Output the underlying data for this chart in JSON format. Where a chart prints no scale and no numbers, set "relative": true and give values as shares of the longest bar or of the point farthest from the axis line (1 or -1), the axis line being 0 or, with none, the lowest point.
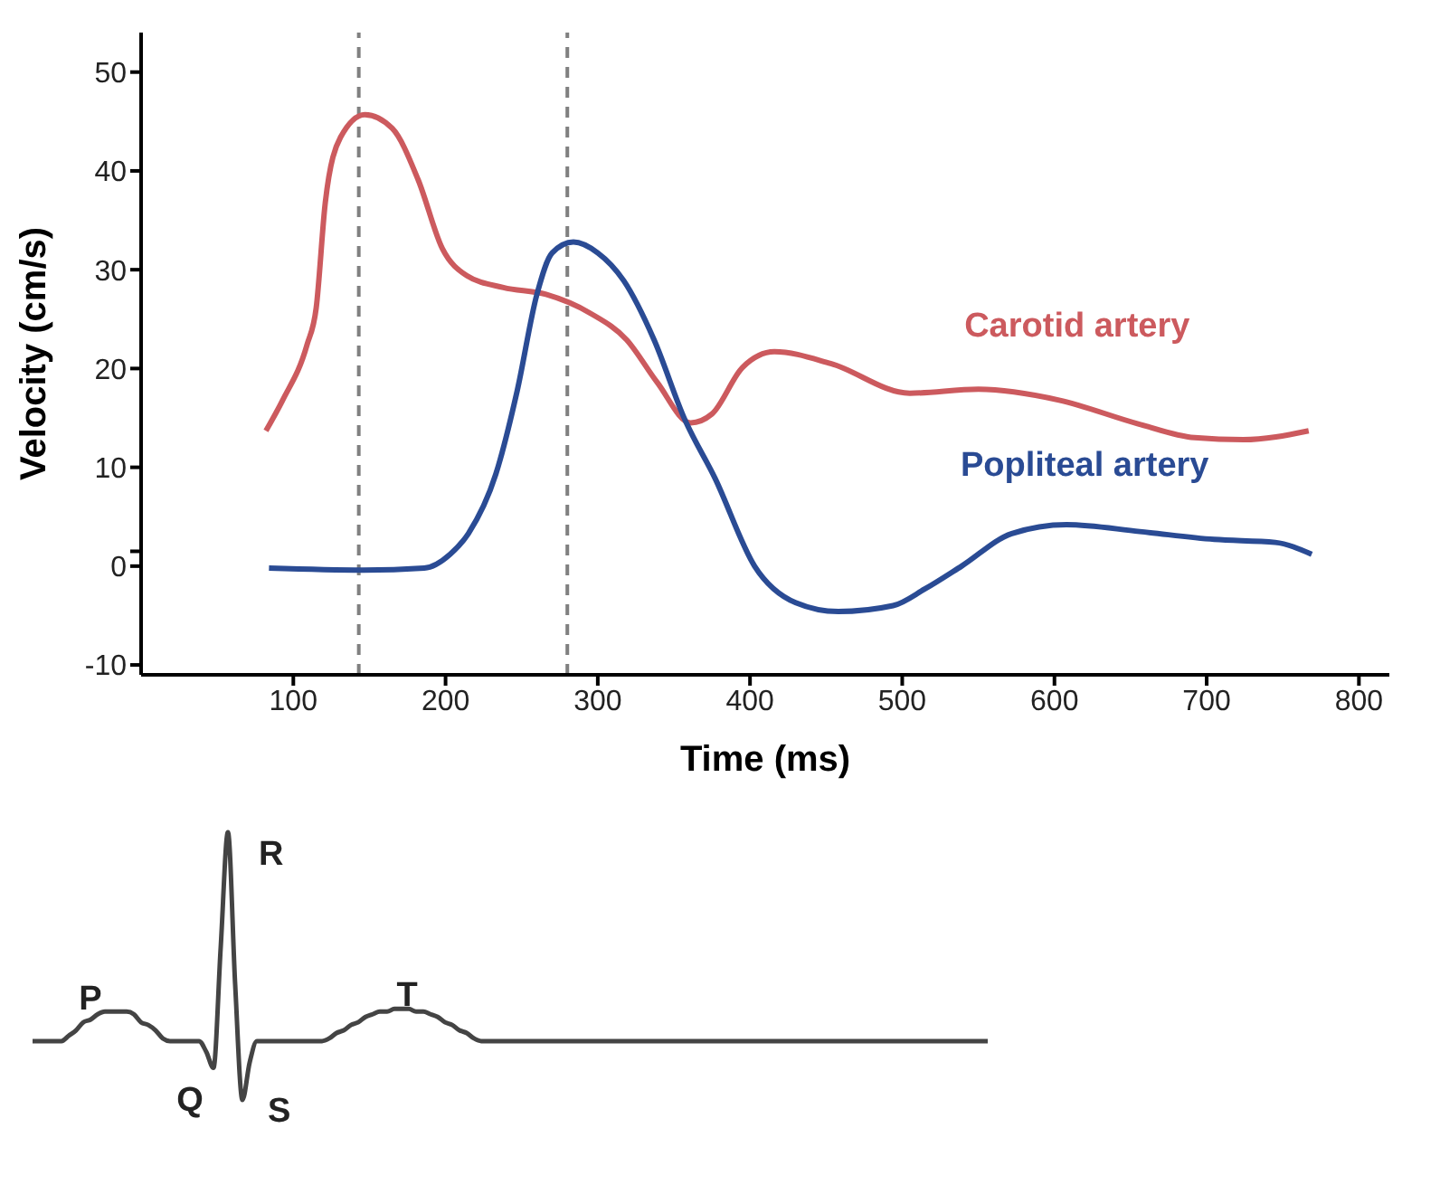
{
  "chart_data": [
    {
      "type": "line",
      "xlabel": "Time (ms)",
      "ylabel": "Velocity (cm/s)",
      "xlim": [
        0,
        820
      ],
      "xticks": [
        100,
        200,
        300,
        400,
        500,
        600,
        700,
        800
      ],
      "ylim": [
        -11,
        54
      ],
      "yticks": [
        -10,
        0,
        {
          "value": 1.5,
          "label": null
        },
        10,
        20,
        30,
        40,
        50
      ],
      "grid": false,
      "legend": false,
      "marker": "none",
      "series": [
        {
          "name": "Carotid artery",
          "color": "#cc5a5e",
          "x": [
            82,
            93,
            109,
            115,
            121,
            131,
            147,
            165,
            182,
            198,
            214,
            238,
            266,
            295,
            319,
            339,
            361,
            375,
            395,
            416,
            453,
            505,
            550,
            603,
            655,
            692,
            724,
            767
          ],
          "values": [
            13.7,
            16.8,
            22.4,
            26.1,
            36.8,
            43.4,
            45.7,
            44.3,
            39.1,
            32.1,
            29.4,
            28.2,
            27.5,
            25.6,
            22.9,
            18.6,
            14.5,
            15.4,
            20.1,
            21.7,
            20.5,
            17.5,
            17.9,
            16.8,
            14.4,
            13.0,
            12.8,
            13.7
          ]
        },
        {
          "name": "Popliteal artery",
          "color": "#2a4b94",
          "x": [
            84,
            146,
            186,
            203,
            215,
            233,
            247,
            260,
            270,
            284,
            300,
            317,
            337,
            357,
            377,
            403,
            430,
            458,
            494,
            515,
            539,
            572,
            608,
            656,
            705,
            745,
            769
          ],
          "values": [
            -0.2,
            -0.4,
            -0.2,
            1.2,
            3.3,
            9.3,
            17.7,
            27.5,
            31.7,
            32.8,
            31.7,
            28.9,
            22.9,
            14.9,
            8.9,
            0,
            -3.7,
            -4.6,
            -4.0,
            -2.3,
            0,
            3.3,
            4.2,
            3.5,
            2.7,
            2.4,
            1.2
          ]
        }
      ],
      "ref_lines": [
        {
          "axis": "x",
          "value": 143,
          "label": null,
          "color": "#808080",
          "line_style": "dashed"
        },
        {
          "axis": "x",
          "value": 280,
          "label": null,
          "color": "#808080",
          "line_style": "dashed"
        }
      ]
    },
    {
      "type": "line",
      "relative": true,
      "color": "#444444",
      "categories": [
        null,
        null,
        null,
        null,
        null,
        null,
        null,
        null,
        null,
        null,
        null,
        null,
        null,
        null,
        null,
        null,
        null,
        null,
        null,
        null,
        null,
        null,
        null,
        null,
        null,
        null,
        null,
        null,
        null,
        null,
        null,
        null,
        null,
        null,
        null,
        null,
        null,
        null,
        null,
        null,
        null,
        null,
        null,
        null,
        null,
        null,
        null,
        null,
        null,
        null,
        null,
        null,
        null,
        null,
        null,
        null,
        null,
        null,
        null,
        null,
        null,
        null,
        null,
        null,
        null,
        null,
        null,
        null,
        null,
        null,
        null,
        null,
        null,
        null,
        null,
        null,
        null,
        null,
        null,
        null,
        null,
        null,
        null,
        null,
        null,
        null,
        null,
        null,
        null,
        null,
        null,
        null,
        null,
        null,
        null,
        null,
        null,
        null,
        null,
        null,
        null,
        null,
        null,
        null,
        null,
        null,
        null,
        null,
        null,
        null,
        null,
        null,
        null,
        null,
        null,
        null,
        null,
        null,
        null,
        null,
        null,
        null,
        null,
        null,
        null,
        null,
        null,
        null,
        null,
        null,
        null,
        null,
        null
      ],
      "values": [
        0.22,
        0.22,
        0.22,
        0.22,
        0.22,
        0.24,
        0.26,
        0.29,
        0.3,
        0.32,
        0.33,
        0.33,
        0.33,
        0.33,
        0.32,
        0.29,
        0.28,
        0.26,
        0.23,
        0.22,
        0.22,
        0.22,
        0.22,
        0.22,
        0.18,
        0.12,
        0.57,
        1.0,
        0.43,
        0,
        0.14,
        0.22,
        0.22,
        0.22,
        0.22,
        0.22,
        0.22,
        0.22,
        0.22,
        0.22,
        0.22,
        0.23,
        0.25,
        0.26,
        0.28,
        0.29,
        0.31,
        0.32,
        0.33,
        0.33,
        0.34,
        0.34,
        0.34,
        0.33,
        0.33,
        0.32,
        0.31,
        0.29,
        0.28,
        0.26,
        0.25,
        0.23,
        0.22,
        0.22,
        0.22,
        0.22,
        0.22,
        0.22,
        0.22,
        0.22,
        0.22,
        0.22,
        0.22,
        0.22,
        0.22,
        0.22,
        0.22,
        0.22,
        0.22,
        0.22,
        0.22,
        0.22,
        0.22,
        0.22,
        0.22,
        0.22,
        0.22,
        0.22,
        0.22,
        0.22,
        0.22,
        0.22,
        0.22,
        0.22,
        0.22,
        0.22,
        0.22,
        0.22,
        0.22,
        0.22,
        0.22,
        0.22,
        0.22,
        0.22,
        0.22,
        0.22,
        0.22,
        0.22,
        0.22,
        0.22,
        0.22,
        0.22,
        0.22,
        0.22,
        0.22,
        0.22,
        0.22,
        0.22,
        0.22,
        0.22,
        0.22,
        0.22,
        0.22,
        0.22,
        0.22,
        0.22,
        0.22,
        0.22,
        0.22,
        0.22,
        0.22,
        0.22,
        0.22
      ],
      "annotations": [
        "P",
        "Q",
        "R",
        "S",
        "T"
      ]
    }
  ]
}
